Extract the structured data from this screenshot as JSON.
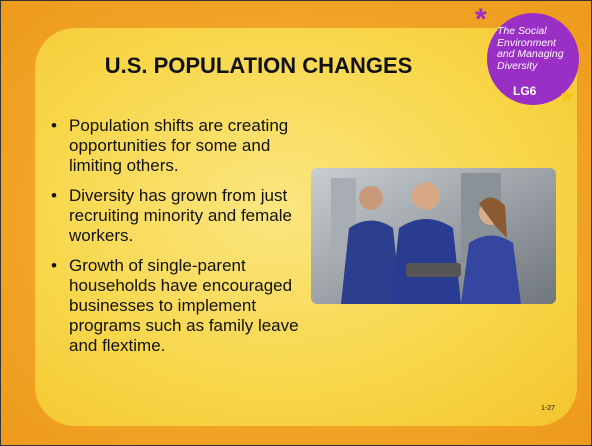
{
  "slide": {
    "title": "U.S. POPULATION CHANGES",
    "bullets": [
      "Population shifts are creating opportunities for some and limiting others.",
      "Diversity has grown from just recruiting minority and female workers.",
      "Growth of single-parent households have encouraged businesses to implement programs such as family leave and flextime."
    ],
    "badge": {
      "lines": [
        "The Social",
        "Environment",
        "and Managing",
        "Diversity"
      ],
      "tag": "LG6"
    },
    "page_number": "1-27"
  }
}
